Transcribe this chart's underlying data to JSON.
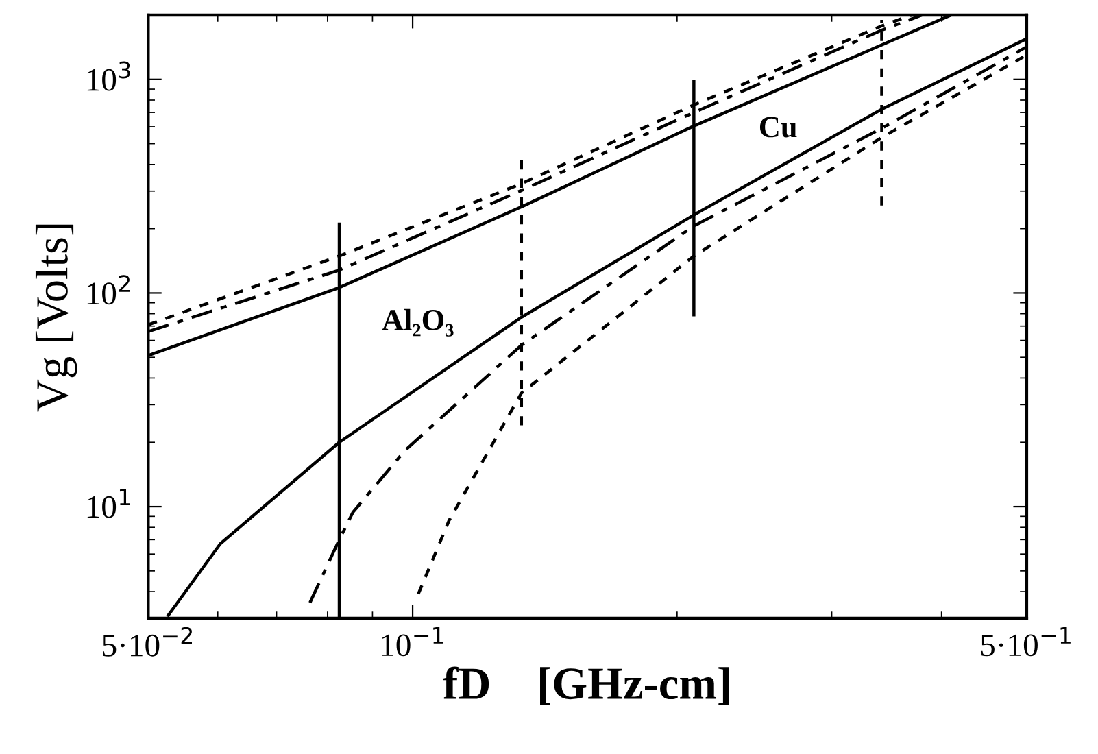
{
  "chart_data": {
    "type": "line",
    "xlabel": "fD    [GHz-cm]",
    "ylabel": "Vg [Volts]",
    "log": "xy",
    "grid": false,
    "marker": "none",
    "xlim": [
      0.05,
      0.5
    ],
    "ylim": [
      3,
      2000
    ],
    "xticks": [
      {
        "value": 0.05,
        "label": "5·10$^{−2}$"
      },
      {
        "value": 0.1,
        "label": "10$^{−1}$"
      },
      {
        "value": 0.5,
        "label": "5·10$^{−1}$"
      }
    ],
    "yticks": [
      {
        "value": 10,
        "label": "10$^{1}$"
      },
      {
        "value": 100,
        "label": "10$^{2}$"
      },
      {
        "value": 1000,
        "label": "10$^{3}$"
      }
    ],
    "series": [
      {
        "color": "#000000",
        "line_style": "solid",
        "x": [
          0.05,
          0.0825,
          0.133,
          0.209,
          0.41
        ],
        "values": [
          51,
          106,
          253,
          605,
          2000
        ]
      },
      {
        "color": "#000000",
        "line_style": "dashed",
        "x": [
          0.05,
          0.0825,
          0.133,
          0.209,
          0.342,
          0.38
        ],
        "values": [
          66,
          128,
          302,
          700,
          1700,
          2000
        ]
      },
      {
        "color": "#000000",
        "line_style": "dotted",
        "x": [
          0.05,
          0.0825,
          0.133,
          0.209,
          0.342,
          0.37
        ],
        "values": [
          71,
          149,
          325,
          760,
          1780,
          2000
        ]
      },
      {
        "color": "#000000",
        "line_style": "solid",
        "x": [
          0.0527,
          0.0604,
          0.0825,
          0.133,
          0.209,
          0.342,
          0.5
        ],
        "values": [
          3.1,
          6.7,
          20,
          77,
          232,
          725,
          1550
        ]
      },
      {
        "color": "#000000",
        "line_style": "dashed",
        "x": [
          0.0764,
          0.0825,
          0.0855,
          0.098,
          0.133,
          0.209,
          0.342,
          0.5
        ],
        "values": [
          3.55,
          7.0,
          9.4,
          18.3,
          57,
          206,
          590,
          1420
        ]
      },
      {
        "color": "#000000",
        "line_style": "dotted",
        "x": [
          0.1015,
          0.11,
          0.133,
          0.209,
          0.342,
          0.5
        ],
        "values": [
          3.9,
          8.6,
          34,
          149,
          535,
          1300
        ]
      },
      {
        "color": "#000000",
        "line_style": "solid",
        "x": [
          0.0825,
          0.0825
        ],
        "values": [
          3,
          210
        ]
      },
      {
        "color": "#000000",
        "line_style": "dotted",
        "x": [
          0.133,
          0.133
        ],
        "values": [
          24,
          435
        ]
      },
      {
        "color": "#000000",
        "line_style": "solid",
        "x": [
          0.209,
          0.209
        ],
        "values": [
          79,
          980
        ]
      },
      {
        "color": "#000000",
        "line_style": "dotted",
        "x": [
          0.342,
          0.342
        ],
        "values": [
          257,
          1900
        ]
      }
    ],
    "annotations": [
      "Al₂O₃",
      "Cu"
    ]
  }
}
